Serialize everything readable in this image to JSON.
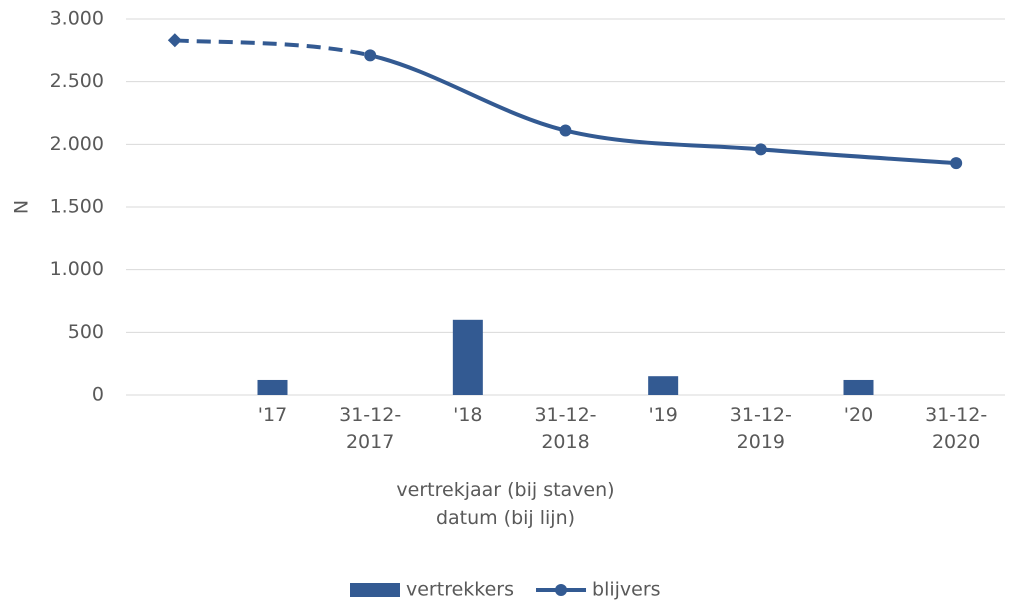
{
  "chart_data": {
    "type": "bar_line",
    "ylabel": "N",
    "xlabel": [
      "vertrekjaar (bij staven)",
      "datum (bij lijn)"
    ],
    "categories": [
      null,
      "'17",
      "31-12-2017",
      "'18",
      "31-12-2018",
      "'19",
      "31-12-2019",
      "'20",
      "31-12-2020"
    ],
    "series": [
      {
        "name": "vertrekkers",
        "type": "bar",
        "color": "#335a92",
        "values": [
          null,
          120,
          null,
          600,
          null,
          150,
          null,
          120,
          null
        ]
      },
      {
        "name": "blijvers",
        "type": "line",
        "color": "#335a92",
        "x": [
          0,
          2,
          4,
          6,
          8
        ],
        "values": [
          2830,
          2710,
          2110,
          1960,
          1850
        ]
      }
    ],
    "ylim": [
      0,
      3000
    ],
    "yticks": [
      0,
      500,
      {
        "value": 1000,
        "label": "1.000"
      },
      {
        "value": 1500,
        "label": "1.500"
      },
      {
        "value": 2000,
        "label": "2.000"
      },
      {
        "value": 2500,
        "label": "2.500"
      },
      {
        "value": 3000,
        "label": "3.000"
      }
    ],
    "grid": true,
    "legend": "bottom"
  }
}
